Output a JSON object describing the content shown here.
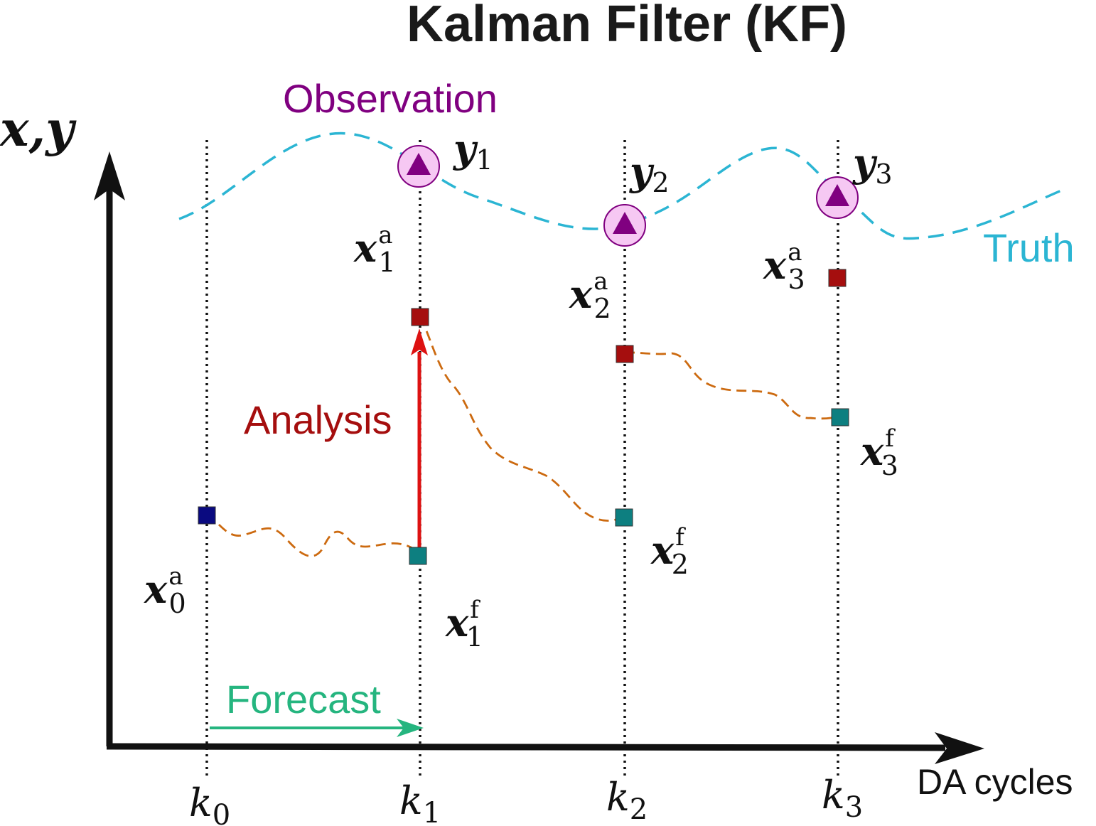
{
  "title": "Kalman Filter (KF)",
  "colors": {
    "truth": "#2bb5d3",
    "observation": "#800080",
    "observation_fill": "#f6c8f3",
    "analysis": "#a50e0e",
    "analysis_arrow": "#dd1111",
    "forecast": "#25b57f",
    "forecast_square": "#0d7f80",
    "initial_square": "#0a0a80",
    "trajectory": "#cc6a10",
    "axis": "#111111"
  },
  "labels": {
    "observation": "Observation",
    "truth": "Truth",
    "analysis": "Analysis",
    "forecast": "Forecast",
    "x_axis": "DA cycles",
    "y_axis": "x,y"
  },
  "cycles": [
    {
      "base": "k",
      "index": "0"
    },
    {
      "base": "k",
      "index": "1"
    },
    {
      "base": "k",
      "index": "2"
    },
    {
      "base": "k",
      "index": "3"
    }
  ],
  "observations": [
    {
      "base": "y",
      "index": "1"
    },
    {
      "base": "y",
      "index": "2"
    },
    {
      "base": "y",
      "index": "3"
    }
  ],
  "analysis_states": [
    {
      "base": "x",
      "sup": "a",
      "index": "0"
    },
    {
      "base": "x",
      "sup": "a",
      "index": "1"
    },
    {
      "base": "x",
      "sup": "a",
      "index": "2"
    },
    {
      "base": "x",
      "sup": "a",
      "index": "3"
    }
  ],
  "forecast_states": [
    {
      "base": "x",
      "sup": "f",
      "index": "1"
    },
    {
      "base": "x",
      "sup": "f",
      "index": "2"
    },
    {
      "base": "x",
      "sup": "f",
      "index": "3"
    }
  ]
}
